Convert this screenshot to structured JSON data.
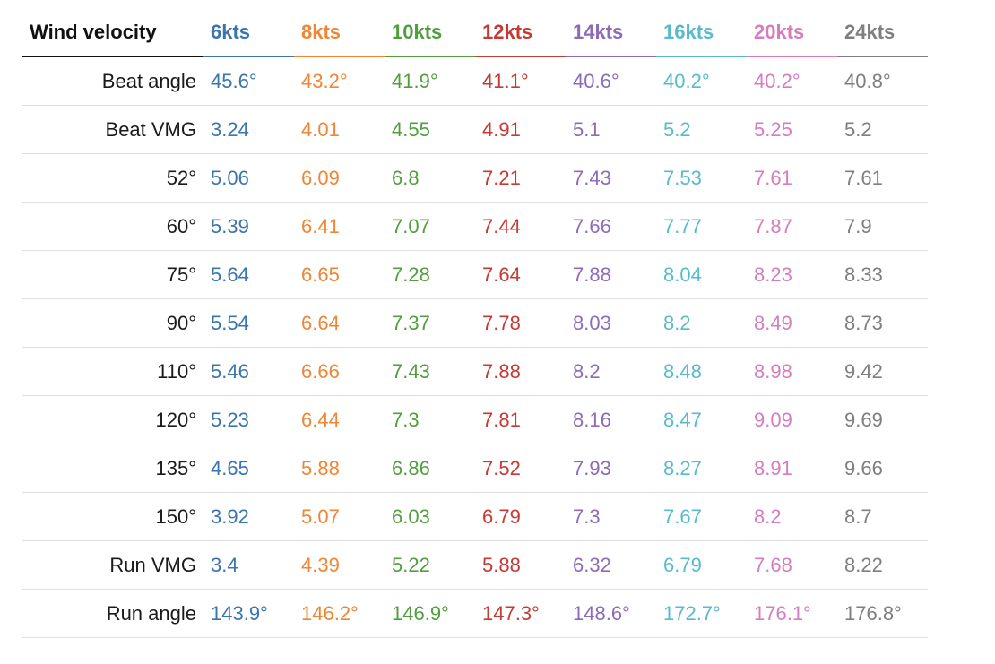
{
  "header_label": "Wind velocity",
  "columns": [
    {
      "label": "6kts",
      "color": "#3b75af"
    },
    {
      "label": "8kts",
      "color": "#ef8636"
    },
    {
      "label": "10kts",
      "color": "#519e3e"
    },
    {
      "label": "12kts",
      "color": "#c53a32"
    },
    {
      "label": "14kts",
      "color": "#8d6bb8"
    },
    {
      "label": "16kts",
      "color": "#58bbcc"
    },
    {
      "label": "20kts",
      "color": "#d57dbe"
    },
    {
      "label": "24kts",
      "color": "#7f7f7f"
    }
  ],
  "rows": [
    {
      "label": "Beat angle",
      "values": [
        "45.6°",
        "43.2°",
        "41.9°",
        "41.1°",
        "40.6°",
        "40.2°",
        "40.2°",
        "40.8°"
      ]
    },
    {
      "label": "Beat VMG",
      "values": [
        "3.24",
        "4.01",
        "4.55",
        "4.91",
        "5.1",
        "5.2",
        "5.25",
        "5.2"
      ]
    },
    {
      "label": "52°",
      "values": [
        "5.06",
        "6.09",
        "6.8",
        "7.21",
        "7.43",
        "7.53",
        "7.61",
        "7.61"
      ]
    },
    {
      "label": "60°",
      "values": [
        "5.39",
        "6.41",
        "7.07",
        "7.44",
        "7.66",
        "7.77",
        "7.87",
        "7.9"
      ]
    },
    {
      "label": "75°",
      "values": [
        "5.64",
        "6.65",
        "7.28",
        "7.64",
        "7.88",
        "8.04",
        "8.23",
        "8.33"
      ]
    },
    {
      "label": "90°",
      "values": [
        "5.54",
        "6.64",
        "7.37",
        "7.78",
        "8.03",
        "8.2",
        "8.49",
        "8.73"
      ]
    },
    {
      "label": "110°",
      "values": [
        "5.46",
        "6.66",
        "7.43",
        "7.88",
        "8.2",
        "8.48",
        "8.98",
        "9.42"
      ]
    },
    {
      "label": "120°",
      "values": [
        "5.23",
        "6.44",
        "7.3",
        "7.81",
        "8.16",
        "8.47",
        "9.09",
        "9.69"
      ]
    },
    {
      "label": "135°",
      "values": [
        "4.65",
        "5.88",
        "6.86",
        "7.52",
        "7.93",
        "8.27",
        "8.91",
        "9.66"
      ]
    },
    {
      "label": "150°",
      "values": [
        "3.92",
        "5.07",
        "6.03",
        "6.79",
        "7.3",
        "7.67",
        "8.2",
        "8.7"
      ]
    },
    {
      "label": "Run VMG",
      "values": [
        "3.4",
        "4.39",
        "5.22",
        "5.88",
        "6.32",
        "6.79",
        "7.68",
        "8.22"
      ]
    },
    {
      "label": "Run angle",
      "values": [
        "143.9°",
        "146.2°",
        "146.9°",
        "147.3°",
        "148.6°",
        "172.7°",
        "176.1°",
        "176.8°"
      ]
    }
  ]
}
